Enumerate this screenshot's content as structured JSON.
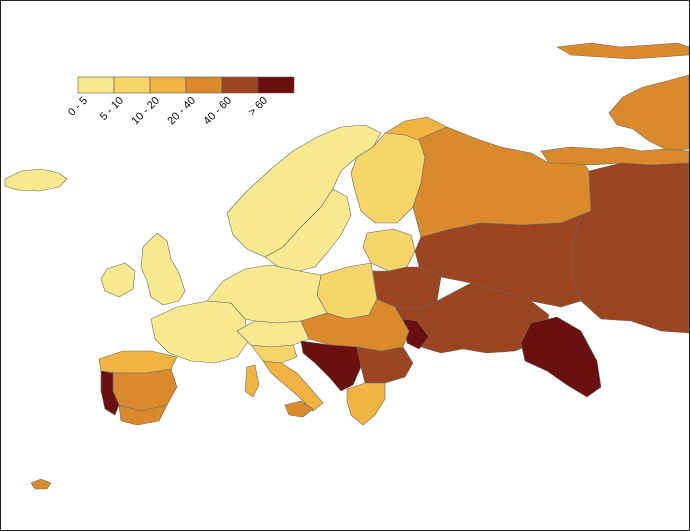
{
  "legend": {
    "classes": [
      {
        "label": "0 - 5",
        "color": "#fbe98f"
      },
      {
        "label": "5 - 10",
        "color": "#f7d56a"
      },
      {
        "label": "10 - 20",
        "color": "#f1b443"
      },
      {
        "label": "20 - 40",
        "color": "#d98a2c"
      },
      {
        "label": "40 - 60",
        "color": "#9b4521"
      },
      {
        "label": "> 60",
        "color": "#6a1110"
      }
    ]
  },
  "regions": [
    {
      "name": "iceland",
      "class": 0
    },
    {
      "name": "scandinavia-north",
      "class": 0
    },
    {
      "name": "scandinavia-south",
      "class": 0
    },
    {
      "name": "finland",
      "class": 1
    },
    {
      "name": "baltics",
      "class": 1
    },
    {
      "name": "british-isles",
      "class": 0
    },
    {
      "name": "ireland",
      "class": 0
    },
    {
      "name": "france",
      "class": 0
    },
    {
      "name": "benelux-germany",
      "class": 0
    },
    {
      "name": "poland",
      "class": 1
    },
    {
      "name": "alps",
      "class": 0
    },
    {
      "name": "italy-north",
      "class": 1
    },
    {
      "name": "italy-south",
      "class": 2
    },
    {
      "name": "sicily",
      "class": 3
    },
    {
      "name": "sardinia-corsica",
      "class": 2
    },
    {
      "name": "iberia-north",
      "class": 2
    },
    {
      "name": "iberia-central",
      "class": 3
    },
    {
      "name": "iberia-south",
      "class": 3
    },
    {
      "name": "portugal-west",
      "class": 5
    },
    {
      "name": "balkans-west",
      "class": 5
    },
    {
      "name": "balkans-east",
      "class": 4
    },
    {
      "name": "greece",
      "class": 2
    },
    {
      "name": "hungary-romania",
      "class": 3
    },
    {
      "name": "belarus",
      "class": 4
    },
    {
      "name": "ukraine",
      "class": 4
    },
    {
      "name": "moldova",
      "class": 5
    },
    {
      "name": "crimea-caucasus",
      "class": 5
    },
    {
      "name": "russia-northwest",
      "class": 3
    },
    {
      "name": "russia-central",
      "class": 4
    },
    {
      "name": "russia-east",
      "class": 4
    },
    {
      "name": "russia-north",
      "class": 3
    },
    {
      "name": "kola-peninsula",
      "class": 2
    },
    {
      "name": "arctic-islands",
      "class": 3
    },
    {
      "name": "svalbard",
      "class": 3
    },
    {
      "name": "macaronesia",
      "class": 3
    }
  ]
}
